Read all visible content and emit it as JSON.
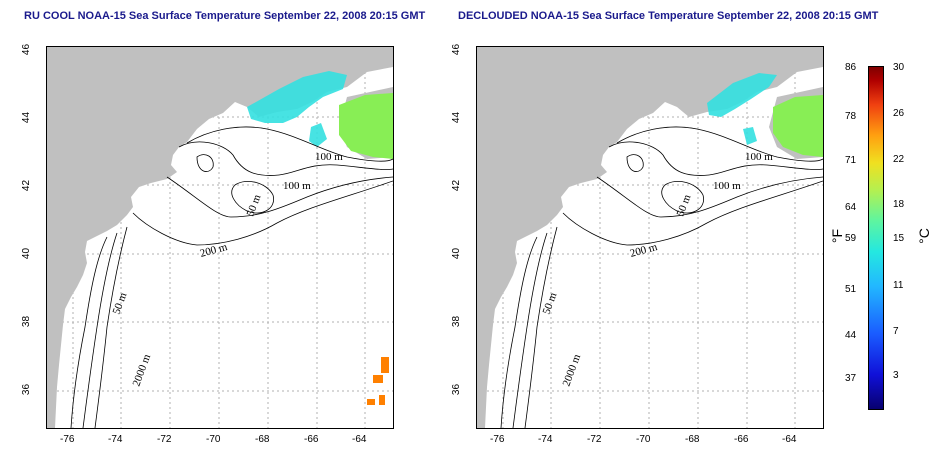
{
  "titles": {
    "left": "RU COOL NOAA-15 Sea Surface Temperature September 22, 2008 20:15 GMT",
    "right": "DECLOUDED NOAA-15 Sea Surface Temperature September 22, 2008 20:15 GMT"
  },
  "axes": {
    "x_ticks": [
      "-76",
      "-74",
      "-72",
      "-70",
      "-68",
      "-66",
      "-64"
    ],
    "y_ticks": [
      "46",
      "44",
      "42",
      "40",
      "38",
      "36"
    ]
  },
  "contour_labels": [
    "100 m",
    "100 m",
    "50 m",
    "200 m",
    "50 m",
    "2000 m"
  ],
  "colorbar": {
    "fahrenheit_unit": "°F",
    "celsius_unit": "°C",
    "fahrenheit": [
      "86",
      "78",
      "71",
      "64",
      "59",
      "51",
      "44",
      "37"
    ],
    "celsius": [
      "30",
      "26",
      "22",
      "18",
      "15",
      "11",
      "7",
      "3"
    ]
  },
  "colors": {
    "land": "#c0c0c0",
    "ocean": "#ffffff",
    "title": "#1a1a8c",
    "sst_cool": "#33e0e0",
    "sst_mid": "#88ee55",
    "sst_warm": "#ff8000"
  }
}
